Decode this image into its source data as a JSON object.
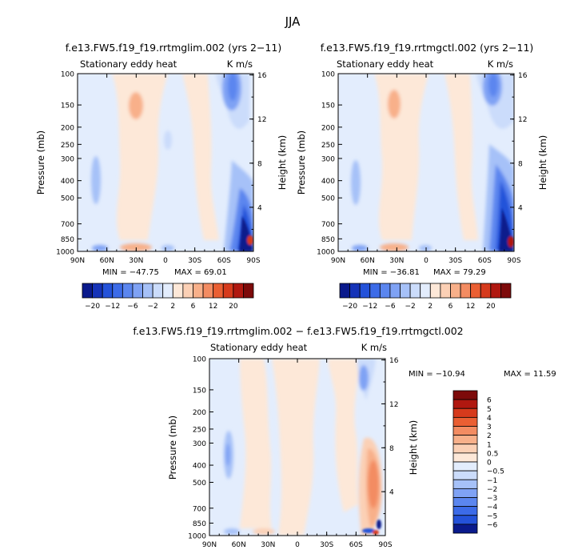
{
  "figure_title": "JJA",
  "chart_data": [
    {
      "type": "heatmap",
      "title": "f.e13.FW5.f19_f19.rrtmglim.002 (yrs 2−11)",
      "left_label": "Stationary eddy heat",
      "right_label": "K m/s",
      "ylabel": "Pressure (mb)",
      "y2label": "Height (km)",
      "xticks": [
        "90N",
        "60N",
        "30N",
        "0",
        "30S",
        "60S",
        "90S"
      ],
      "yticks": [
        "100",
        "150",
        "200",
        "250",
        "300",
        "400",
        "500",
        "700",
        "850",
        "1000"
      ],
      "y2ticks": [
        "16",
        "12",
        "8",
        "4"
      ],
      "min_text": "MIN = −47.75",
      "max_text": "MAX =   69.01",
      "min": -47.75,
      "max": 69.01
    },
    {
      "type": "heatmap",
      "title": "f.e13.FW5.f19_f19.rrtmgctl.002 (yrs 2−11)",
      "left_label": "Stationary eddy heat",
      "right_label": "K m/s",
      "ylabel": "Pressure (mb)",
      "y2label": "Height (km)",
      "xticks": [
        "90N",
        "60N",
        "30N",
        "0",
        "30S",
        "60S",
        "90S"
      ],
      "yticks": [
        "100",
        "150",
        "200",
        "250",
        "300",
        "400",
        "500",
        "700",
        "850",
        "1000"
      ],
      "y2ticks": [
        "16",
        "12",
        "8",
        "4"
      ],
      "min_text": "MIN = −36.81",
      "max_text": "MAX =   79.29",
      "min": -36.81,
      "max": 79.29
    },
    {
      "type": "heatmap",
      "title": "f.e13.FW5.f19_f19.rrtmglim.002 − f.e13.FW5.f19_f19.rrtmgctl.002",
      "left_label": "Stationary eddy heat",
      "right_label": "K m/s",
      "ylabel": "Pressure (mb)",
      "y2label": "Height (km)",
      "xticks": [
        "90N",
        "60N",
        "30N",
        "0",
        "30S",
        "60S",
        "90S"
      ],
      "yticks": [
        "100",
        "150",
        "200",
        "250",
        "300",
        "400",
        "500",
        "700",
        "850",
        "1000"
      ],
      "y2ticks": [
        "16",
        "12",
        "8",
        "4"
      ],
      "min_text": "MIN = −10.94",
      "max_text": "MAX =   11.59",
      "min": -10.94,
      "max": 11.59
    }
  ],
  "colorbar_top": {
    "labels": [
      "−20",
      "−12",
      "−6",
      "−2",
      "2",
      "6",
      "12",
      "20"
    ],
    "colors": [
      "#0a1a8c",
      "#1533b8",
      "#2452d9",
      "#3c6be8",
      "#5b86ef",
      "#7fa2f4",
      "#a6c1f8",
      "#cbdcfb",
      "#e3edfd",
      "#fde8d8",
      "#fbd0b5",
      "#f8b08a",
      "#f38c62",
      "#ea5f33",
      "#d63a1c",
      "#b01810",
      "#7d0a0a"
    ]
  },
  "colorbar_diff": {
    "labels": [
      "6",
      "5",
      "4",
      "3",
      "2",
      "1",
      "0.5",
      "0",
      "−0.5",
      "−1",
      "−2",
      "−3",
      "−4",
      "−5",
      "−6"
    ],
    "colors": [
      "#7d0a0a",
      "#b01810",
      "#d63a1c",
      "#ea5f33",
      "#f38c62",
      "#f8b08a",
      "#fbd0b5",
      "#fde8d8",
      "#e3edfd",
      "#cbdcfb",
      "#a6c1f8",
      "#7fa2f4",
      "#5b86ef",
      "#3c6be8",
      "#2452d9",
      "#0a1a8c"
    ]
  }
}
